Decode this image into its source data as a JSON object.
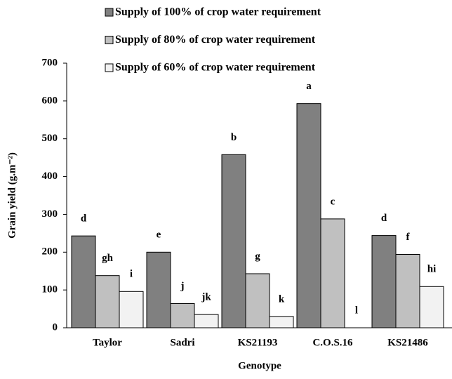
{
  "chart_data": {
    "type": "bar",
    "x_label": "Genotype",
    "y_label": "Grain yield (g.m⁻²)",
    "categories": [
      "Taylor",
      "Sadri",
      "KS21193",
      "C.O.S.16",
      "KS21486"
    ],
    "series": [
      {
        "name": "Supply of 100% of crop water requirement",
        "color": "#808080",
        "values": [
          243,
          200,
          458,
          593,
          244
        ],
        "letters": [
          "d",
          "e",
          "b",
          "a",
          "d"
        ]
      },
      {
        "name": "Supply of 80% of crop water requirement",
        "color": "#c0c0c0",
        "values": [
          138,
          64,
          143,
          288,
          194
        ],
        "letters": [
          "gh",
          "j",
          "g",
          "c",
          "f"
        ]
      },
      {
        "name": "Supply of 60% of crop water requirement",
        "color": "#f2f2f2",
        "values": [
          96,
          35,
          30,
          0,
          109
        ],
        "letters": [
          "i",
          "jk",
          "k",
          "l",
          "hi"
        ]
      }
    ],
    "ylim": [
      0,
      700
    ],
    "yticks": [
      0,
      100,
      200,
      300,
      400,
      500,
      600,
      700
    ],
    "grid": false,
    "legend": "top"
  }
}
